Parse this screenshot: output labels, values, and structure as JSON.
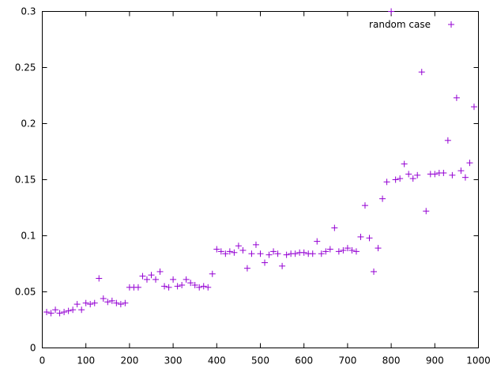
{
  "chart_data": {
    "type": "scatter",
    "title": "",
    "xlabel": "",
    "ylabel": "",
    "xlim": [
      0,
      1000
    ],
    "ylim": [
      0,
      0.3
    ],
    "x_ticks": [
      "0",
      "100",
      "200",
      "300",
      "400",
      "500",
      "600",
      "700",
      "800",
      "900",
      "1000"
    ],
    "y_ticks": [
      "0",
      "0.05",
      "0.1",
      "0.15",
      "0.2",
      "0.25",
      "0.3"
    ],
    "grid": false,
    "legend_position": "top-right",
    "series": [
      {
        "name": "random case",
        "color": "#9400d3",
        "marker": "plus",
        "points": [
          [
            10,
            0.032
          ],
          [
            20,
            0.031
          ],
          [
            30,
            0.034
          ],
          [
            40,
            0.031
          ],
          [
            50,
            0.032
          ],
          [
            60,
            0.033
          ],
          [
            70,
            0.034
          ],
          [
            80,
            0.039
          ],
          [
            90,
            0.034
          ],
          [
            100,
            0.04
          ],
          [
            110,
            0.039
          ],
          [
            120,
            0.04
          ],
          [
            130,
            0.062
          ],
          [
            140,
            0.044
          ],
          [
            150,
            0.041
          ],
          [
            160,
            0.042
          ],
          [
            170,
            0.04
          ],
          [
            180,
            0.039
          ],
          [
            190,
            0.04
          ],
          [
            200,
            0.054
          ],
          [
            210,
            0.054
          ],
          [
            220,
            0.054
          ],
          [
            230,
            0.064
          ],
          [
            240,
            0.061
          ],
          [
            250,
            0.065
          ],
          [
            260,
            0.061
          ],
          [
            270,
            0.068
          ],
          [
            280,
            0.055
          ],
          [
            290,
            0.054
          ],
          [
            300,
            0.061
          ],
          [
            310,
            0.055
          ],
          [
            320,
            0.056
          ],
          [
            330,
            0.061
          ],
          [
            340,
            0.058
          ],
          [
            350,
            0.056
          ],
          [
            360,
            0.054
          ],
          [
            370,
            0.055
          ],
          [
            380,
            0.054
          ],
          [
            390,
            0.066
          ],
          [
            400,
            0.088
          ],
          [
            410,
            0.086
          ],
          [
            420,
            0.084
          ],
          [
            430,
            0.086
          ],
          [
            440,
            0.085
          ],
          [
            450,
            0.091
          ],
          [
            460,
            0.087
          ],
          [
            470,
            0.071
          ],
          [
            480,
            0.084
          ],
          [
            490,
            0.092
          ],
          [
            500,
            0.084
          ],
          [
            510,
            0.076
          ],
          [
            520,
            0.083
          ],
          [
            530,
            0.086
          ],
          [
            540,
            0.084
          ],
          [
            550,
            0.073
          ],
          [
            560,
            0.083
          ],
          [
            570,
            0.084
          ],
          [
            580,
            0.084
          ],
          [
            590,
            0.085
          ],
          [
            600,
            0.085
          ],
          [
            610,
            0.084
          ],
          [
            620,
            0.084
          ],
          [
            630,
            0.095
          ],
          [
            640,
            0.084
          ],
          [
            650,
            0.086
          ],
          [
            660,
            0.088
          ],
          [
            670,
            0.107
          ],
          [
            680,
            0.086
          ],
          [
            690,
            0.087
          ],
          [
            700,
            0.089
          ],
          [
            710,
            0.087
          ],
          [
            720,
            0.086
          ],
          [
            730,
            0.099
          ],
          [
            740,
            0.127
          ],
          [
            750,
            0.098
          ],
          [
            760,
            0.068
          ],
          [
            770,
            0.089
          ],
          [
            780,
            0.133
          ],
          [
            790,
            0.148
          ],
          [
            800,
            0.3
          ],
          [
            810,
            0.15
          ],
          [
            820,
            0.151
          ],
          [
            830,
            0.164
          ],
          [
            840,
            0.155
          ],
          [
            850,
            0.151
          ],
          [
            860,
            0.154
          ],
          [
            870,
            0.246
          ],
          [
            880,
            0.122
          ],
          [
            890,
            0.155
          ],
          [
            900,
            0.155
          ],
          [
            910,
            0.156
          ],
          [
            920,
            0.156
          ],
          [
            930,
            0.185
          ],
          [
            940,
            0.154
          ],
          [
            950,
            0.223
          ],
          [
            960,
            0.158
          ],
          [
            970,
            0.152
          ],
          [
            980,
            0.165
          ],
          [
            990,
            0.215
          ]
        ]
      }
    ]
  }
}
